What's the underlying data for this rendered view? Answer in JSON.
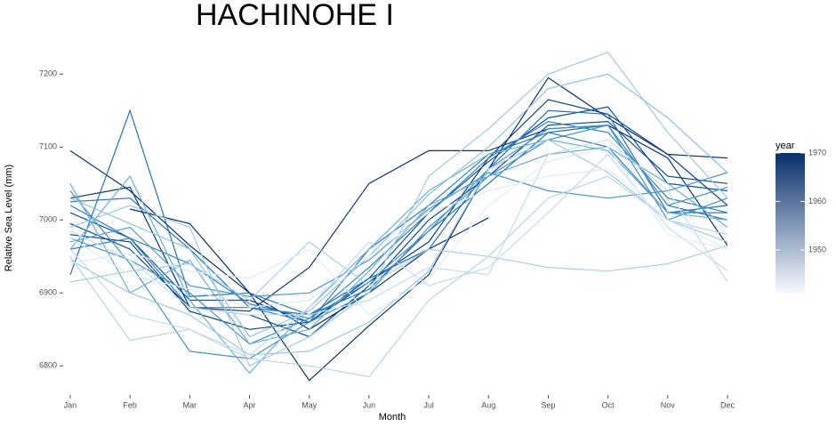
{
  "chart_data": {
    "type": "line",
    "title": "HACHINOHE I",
    "xlabel": "Month",
    "ylabel": "Relative Sea Level (mm)",
    "categories": [
      "Jan",
      "Feb",
      "Mar",
      "Apr",
      "May",
      "Jun",
      "Jul",
      "Aug",
      "Sep",
      "Oct",
      "Nov",
      "Dec"
    ],
    "ylim": [
      6765,
      7265
    ],
    "yticks": [
      6800,
      6900,
      7000,
      7100,
      7200
    ],
    "grid": false,
    "legend": {
      "title": "year",
      "position": "right",
      "lim": [
        1941,
        1970
      ],
      "ticks": [
        1950,
        1960,
        1970
      ],
      "colors": [
        "#f7fbff",
        "#08306b"
      ]
    },
    "series": [
      {
        "color": "#08306b",
        "values": [
          7095,
          7040,
          6965,
          6900,
          6780,
          6855,
          6925,
          7070,
          7195,
          7140,
          7090,
          7085
        ]
      },
      {
        "color": "#0a3470",
        "values": [
          7030,
          7045,
          6880,
          6875,
          6935,
          7050,
          7095,
          7095,
          7125,
          7130,
          7085,
          6965
        ]
      },
      {
        "color": "#08306b",
        "values": [
          null,
          7015,
          6995,
          6900,
          6850,
          6900,
          6960,
          7003,
          null,
          null,
          null,
          null
        ]
      },
      {
        "color": "#0b4083",
        "values": [
          6980,
          6970,
          6875,
          6850,
          6860,
          6915,
          6970,
          7085,
          7165,
          7145,
          7090,
          7020
        ]
      },
      {
        "color": "#08519c",
        "values": [
          7010,
          6975,
          6890,
          6890,
          6860,
          6920,
          7010,
          7080,
          7140,
          7155,
          7050,
          7040
        ]
      },
      {
        "color": "#0d4a90",
        "values": [
          6995,
          6960,
          6880,
          6870,
          6840,
          6910,
          7000,
          7060,
          7130,
          7135,
          7060,
          7050
        ]
      },
      {
        "color": "#2171b5",
        "values": [
          6925,
          7150,
          6895,
          6900,
          6870,
          6905,
          6985,
          7050,
          7120,
          7130,
          7020,
          7000
        ]
      },
      {
        "color": "#2171b5",
        "values": [
          7025,
          7030,
          6960,
          6880,
          6870,
          6920,
          6960,
          7070,
          7150,
          7145,
          7010,
          7020
        ]
      },
      {
        "color": "#3282be",
        "values": [
          6960,
          6975,
          6940,
          6885,
          6865,
          6935,
          7010,
          7085,
          7135,
          7120,
          7030,
          7010
        ]
      },
      {
        "color": "#4292c6",
        "values": [
          7040,
          6940,
          6820,
          6810,
          6860,
          6900,
          6990,
          7060,
          7110,
          7130,
          7000,
          7030
        ]
      },
      {
        "color": "#4292c6",
        "values": [
          6975,
          6945,
          6900,
          6830,
          6865,
          6915,
          6985,
          7070,
          7125,
          7130,
          7020,
          7045
        ]
      },
      {
        "color": "#2f7ebc",
        "values": [
          7020,
          6975,
          6880,
          6880,
          6860,
          6960,
          7020,
          7090,
          7120,
          7100,
          7010,
          7010
        ]
      },
      {
        "color": "#4a98c9",
        "values": [
          6970,
          6990,
          6910,
          6895,
          6900,
          6945,
          7015,
          7065,
          7040,
          7030,
          7040,
          7065
        ]
      },
      {
        "color": "#6baed6",
        "values": [
          7050,
          6900,
          6945,
          6830,
          6850,
          6930,
          7020,
          7060,
          7090,
          7100,
          7050,
          6990
        ]
      },
      {
        "color": "#6baed6",
        "values": [
          6960,
          7060,
          6890,
          6790,
          6880,
          6960,
          7040,
          7090,
          7110,
          7095,
          7010,
          7000
        ]
      },
      {
        "color": "#9ecae1",
        "values": [
          6990,
          7020,
          6990,
          6800,
          6840,
          6900,
          7060,
          7125,
          7200,
          7230,
          7120,
          7030
        ]
      },
      {
        "color": "#8fc2de",
        "values": [
          7030,
          6995,
          6960,
          6840,
          6875,
          6950,
          7035,
          7100,
          7180,
          7200,
          7140,
          7065
        ]
      },
      {
        "color": "#9ecae1",
        "values": [
          6945,
          6900,
          6870,
          6815,
          6820,
          6860,
          6930,
          7070,
          7110,
          7065,
          7000,
          6970
        ]
      },
      {
        "color": "#a9cfe5",
        "values": [
          6915,
          6930,
          6940,
          6890,
          6970,
          6910,
          6960,
          6950,
          6935,
          6930,
          6940,
          6965
        ]
      },
      {
        "color": "#b6d4ea",
        "values": [
          6950,
          6835,
          6850,
          6810,
          6800,
          6785,
          6890,
          6950,
          7030,
          7060,
          7000,
          6980
        ]
      },
      {
        "color": "#c6dbef",
        "values": [
          6960,
          6870,
          6850,
          6815,
          6880,
          6970,
          6910,
          6935,
          7010,
          7090,
          6990,
          6930
        ]
      },
      {
        "color": "#c6dbef",
        "values": [
          6985,
          6945,
          6880,
          6870,
          6870,
          6890,
          6935,
          6925,
          7090,
          7110,
          7040,
          6915
        ]
      },
      {
        "color": "#deebf7",
        "values": [
          6940,
          6955,
          6930,
          6920,
          6960,
          6870,
          6920,
          7020,
          7080,
          7100,
          6980,
          6960
        ]
      },
      {
        "color": "#deebf7",
        "values": [
          6975,
          6925,
          6905,
          6880,
          6890,
          6950,
          7010,
          7040,
          7060,
          7070,
          7000,
          6960
        ]
      }
    ]
  }
}
